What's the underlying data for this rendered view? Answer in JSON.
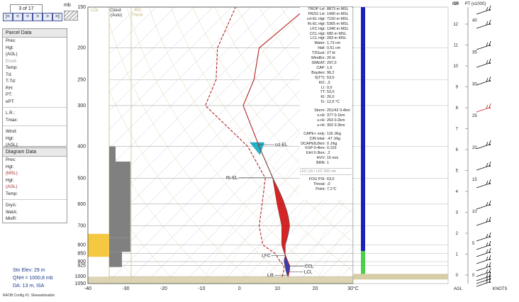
{
  "nav": {
    "counter": "3 of 17",
    "unit": "mb",
    "buttons": [
      "|<",
      "<",
      "<",
      ">",
      ">",
      ">|"
    ]
  },
  "parcel_panel": {
    "title": "Parcel Data",
    "fields": [
      "Pres:",
      "Hgt:",
      "(AGL)",
      "Envd:",
      "Temp:",
      "Td:",
      "T-Td:",
      "RH:",
      "PT:",
      "ePT:",
      "L.R.:",
      "Tmax:",
      "Wind:",
      "Hgt:",
      "(AGL):"
    ]
  },
  "diagram_panel": {
    "title": "Diagram Data",
    "fields": [
      "Pres:",
      "Hgt:",
      "(MSL)",
      "Hgt:",
      "(AGL)",
      "Temp:",
      "DryA:",
      "WetA:",
      "MixR:"
    ]
  },
  "station": {
    "elev": "Stn Elev: 29 m",
    "qnh": "QNH = 1000,8 mb",
    "da": "DA: 13 m, ISA"
  },
  "config": "RAOB Config #1: Skewadvisable",
  "headers": {
    "cloud": "Cloud",
    "auto": "(Auto)",
    "ro": "RO",
    "trmal": "Thrml",
    "lcl_col": "LCL"
  },
  "stats": [
    [
      "TROP Lvl:",
      "8873 m MSL"
    ],
    [
      "FRZG Lvl:",
      "1490 m MSL"
    ],
    [
      "ccl-EL Hgt:",
      "7150 m MSL"
    ],
    [
      "lfc-EL Hgt:",
      "5365 m MSL"
    ],
    [
      "LFC Hgt:",
      "1346 m MSL"
    ],
    [
      "CCL Hgt:",
      "680 m MSL"
    ],
    [
      "LCL Hgt:",
      "283 m MSL"
    ],
    [
      "Water:",
      "1,73 cm"
    ],
    [
      "Hail:",
      "0,61 cm"
    ],
    [
      "T2Gust:",
      "27 kt"
    ],
    [
      "WindEx:",
      "26 kt"
    ],
    [
      "SWEAT:",
      "297,0"
    ],
    [
      "CAP:",
      "1,6"
    ],
    [
      "Boyden:",
      "96,2"
    ],
    [
      "S(TT):",
      "53,0"
    ],
    [
      "KO:",
      ",3"
    ],
    [
      "LI:",
      "0,0"
    ],
    [
      "TT:",
      "53,0"
    ],
    [
      "KI:",
      "26,0"
    ],
    [
      "Tc:",
      "12,6 °C"
    ]
  ],
  "storm": [
    [
      "Storm:",
      "251/42 0-4km"
    ],
    [
      "s-rH:",
      "377  0-1km"
    ],
    [
      "s-rH:",
      "263  0-2km"
    ],
    [
      "s-rH:",
      "302  0-3km"
    ]
  ],
  "cape": [
    [
      "CAPE+ only:",
      "116 J/kg"
    ],
    [
      "CIN total:",
      "-47 J/kg"
    ],
    [
      "DCAPE8,0km:",
      "0 J/kg"
    ],
    [
      "VGP 0-4km:",
      "0,103"
    ],
    [
      "EHI 0-3km:",
      ",2"
    ],
    [
      "HVV:",
      "15 m/s"
    ],
    [
      "BRN:",
      "1"
    ]
  ],
  "lfc_lift": "LFC Lift / LFC 900 mb",
  "fog": [
    [
      "FOG PSI:",
      "63,0"
    ],
    [
      "Threat:",
      ",0"
    ],
    [
      "Point:",
      "7,1°C"
    ]
  ],
  "wind_axis": {
    "km_label": "KM",
    "ft_label": "FT (x1000)",
    "agl": "AGL",
    "knots": "KNOTS"
  },
  "chart_data": {
    "type": "line",
    "title": "",
    "xlabel": "",
    "ylabel": "",
    "x_ticks": [
      "-40",
      "-30",
      "-20",
      "-10",
      "0",
      "10",
      "20",
      "30°C"
    ],
    "x_values": [
      -40,
      -30,
      -20,
      -10,
      0,
      10,
      20,
      30
    ],
    "y_ticks": [
      150,
      200,
      250,
      300,
      400,
      500,
      600,
      700,
      800,
      850,
      900,
      925,
      1000,
      1050
    ],
    "ylim": [
      1050,
      150
    ],
    "skew_degrees_per_log": 45,
    "temperature_color": "#b22222",
    "dewpoint_color": "#b22222",
    "parcel_color": "#555555",
    "cape_color": "#cc0000",
    "cin_color": "#1a1aa8",
    "el_color": "#20b2c8",
    "series": [
      {
        "values": [
          [
            1000,
            11.0
          ],
          [
            950,
            9.5
          ],
          [
            925,
            8.5
          ],
          [
            900,
            7.0
          ],
          [
            850,
            4.0
          ],
          [
            800,
            1.0
          ],
          [
            700,
            -4.0
          ],
          [
            600,
            -11.0
          ],
          [
            500,
            -19.0
          ],
          [
            400,
            -31.0
          ],
          [
            300,
            -46.0
          ],
          [
            250,
            -50.0
          ],
          [
            200,
            -57.0
          ],
          [
            150,
            -55.0
          ]
        ]
      },
      {
        "values": [
          [
            1000,
            9.5
          ],
          [
            950,
            8.0
          ],
          [
            925,
            7.0
          ],
          [
            900,
            5.0
          ],
          [
            850,
            1.5
          ],
          [
            800,
            -4.0
          ],
          [
            700,
            -10.0
          ],
          [
            600,
            -15.0
          ],
          [
            500,
            -21.0
          ],
          [
            400,
            -34.0
          ],
          [
            300,
            -56.0
          ],
          [
            250,
            -60.0
          ],
          [
            200,
            -68.0
          ],
          [
            150,
            -74.0
          ]
        ]
      }
    ],
    "levels": [
      {
        "label": "ccl-EL",
        "pressure": 395
      },
      {
        "label": "lfc-EL",
        "pressure": 498
      },
      {
        "label": "LFC",
        "pressure": 862
      },
      {
        "label": "CCL",
        "pressure": 930
      },
      {
        "label": "LCL",
        "pressure": 967
      },
      {
        "label": "Lift",
        "pressure": 990
      }
    ],
    "km_ticks": [
      0,
      1,
      2,
      3,
      4,
      5,
      6,
      7,
      8,
      9,
      10,
      11,
      12,
      13
    ],
    "ft_ticks": [
      0,
      5,
      10,
      15,
      20,
      25,
      30,
      35,
      40
    ]
  }
}
